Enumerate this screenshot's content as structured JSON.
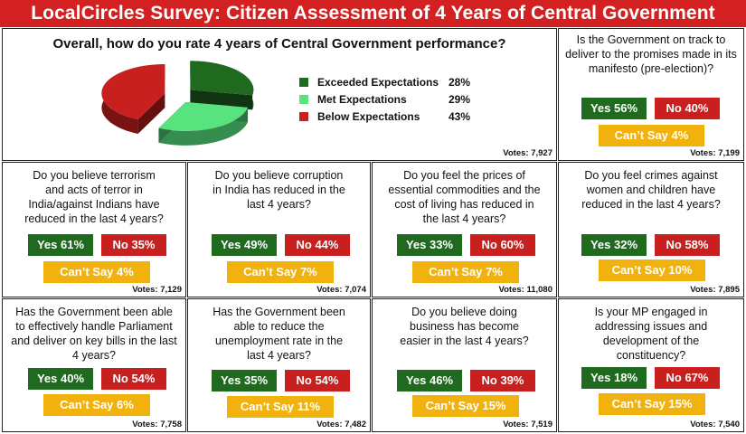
{
  "title": "LocalCircles Survey: Citizen Assessment of 4 Years of Central Government",
  "colors": {
    "banner": "#d32020",
    "yes": "#1f6a1f",
    "no": "#c81f1f",
    "cant_say": "#f2b20d",
    "exceeded": "#1f6a1f",
    "met": "#59e37f",
    "below": "#c81f1f"
  },
  "main": {
    "question": "Overall, how do you rate 4 years of Central Government performance?",
    "votes": "Votes: 7,927"
  },
  "chart_data": {
    "type": "pie",
    "title": "Overall, how do you rate 4 years of Central Government performance?",
    "categories": [
      "Exceeded Expectations",
      "Met Expectations",
      "Below Expectations"
    ],
    "values": [
      28,
      29,
      43
    ],
    "labels": [
      "28%",
      "29%",
      "43%"
    ],
    "colors": [
      "#1f6a1f",
      "#59e37f",
      "#c81f1f"
    ],
    "legend": "right"
  },
  "panels": [
    {
      "question": "Is the Government on track to deliver to the promises made in its manifesto (pre-election)?",
      "yes": "Yes 56%",
      "no": "No 40%",
      "cant_say": "Can’t Say 4%",
      "votes": "Votes: 7,199"
    },
    {
      "question": "Do you believe terrorism and acts of terror in India/against Indians have reduced in the last 4 years?",
      "yes": "Yes 61%",
      "no": "No 35%",
      "cant_say": "Can’t Say 4%",
      "votes": "Votes: 7,129"
    },
    {
      "question": "Do you believe corruption in India has reduced in the last 4 years?",
      "yes": "Yes 49%",
      "no": "No 44%",
      "cant_say": "Can’t Say 7%",
      "votes": "Votes: 7,074"
    },
    {
      "question": "Do you feel the prices of essential commodities and the cost of living has reduced in the last 4 years?",
      "yes": "Yes 33%",
      "no": "No 60%",
      "cant_say": "Can’t Say 7%",
      "votes": "Votes: 11,080"
    },
    {
      "question": "Do you feel crimes against women and children have reduced in the last 4 years?",
      "yes": "Yes 32%",
      "no": "No 58%",
      "cant_say": "Can’t Say 10%",
      "votes": "Votes: 7,895"
    },
    {
      "question": "Has the Government been able to effectively handle Parliament and deliver on key bills in the last 4 years?",
      "yes": "Yes 40%",
      "no": "No 54%",
      "cant_say": "Can’t Say 6%",
      "votes": "Votes: 7,758"
    },
    {
      "question": "Has the Government been able to reduce the unemployment rate in the last 4 years?",
      "yes": "Yes 35%",
      "no": "No 54%",
      "cant_say": "Can’t Say 11%",
      "votes": "Votes: 7,482"
    },
    {
      "question": "Do you believe doing business has become easier in the last 4 years?",
      "yes": "Yes 46%",
      "no": "No 39%",
      "cant_say": "Can’t Say 15%",
      "votes": "Votes: 7,519"
    },
    {
      "question": "Is your MP engaged in addressing issues and development of the constituency?",
      "yes": "Yes 18%",
      "no": "No 67%",
      "cant_say": "Can’t Say 15%",
      "votes": "Votes: 7,540"
    }
  ]
}
